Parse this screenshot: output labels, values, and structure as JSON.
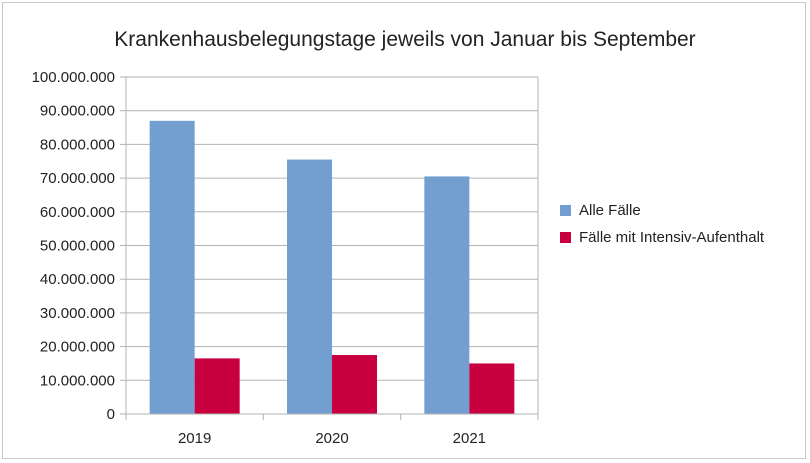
{
  "chart_data": {
    "type": "bar",
    "title": "Krankenhausbelegungstage jeweils von Januar bis September",
    "categories": [
      "2019",
      "2020",
      "2021"
    ],
    "series": [
      {
        "name": "Alle Fälle",
        "color": "#729fcf",
        "values": [
          87000000,
          75500000,
          70500000
        ]
      },
      {
        "name": "Fälle mit Intensiv-Aufenthalt",
        "color": "#c9003f",
        "values": [
          16500000,
          17500000,
          15000000
        ]
      }
    ],
    "ylim": [
      0,
      100000000
    ],
    "yticks": [
      0,
      10000000,
      20000000,
      30000000,
      40000000,
      50000000,
      60000000,
      70000000,
      80000000,
      90000000,
      100000000
    ],
    "ytick_labels": [
      "0",
      "10.000.000",
      "20.000.000",
      "30.000.000",
      "40.000.000",
      "50.000.000",
      "60.000.000",
      "70.000.000",
      "80.000.000",
      "90.000.000",
      "100.000.000"
    ],
    "grid": true,
    "legend": "right"
  }
}
